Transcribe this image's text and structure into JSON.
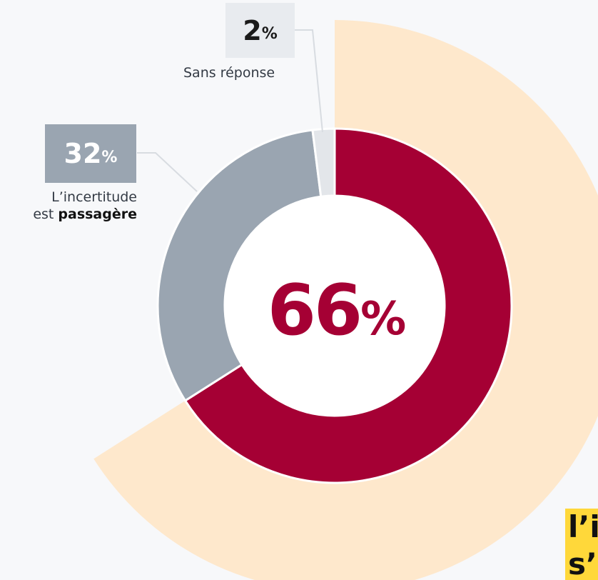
{
  "colors": {
    "background": "#f7f8fa",
    "main_segment": "#a50034",
    "secondary_segment": "#9aa5b1",
    "no_answer_segment": "#e3e6ea",
    "outer_ring": "#fee8cc",
    "label_box_light": "#e8ebef",
    "label_box_gray": "#9aa5b1",
    "highlight": "#ffd83a"
  },
  "chart_data": {
    "type": "pie",
    "subtype": "donut",
    "values": [
      66,
      32,
      2
    ],
    "center_label": {
      "value": "66",
      "unit": "%"
    },
    "slices": [
      {
        "value": 66,
        "color": "#a50034"
      },
      {
        "value": 32,
        "label": "L’incertitude est passagère",
        "color": "#9aa5b1"
      },
      {
        "value": 2,
        "label": "Sans réponse",
        "color": "#e3e6ea"
      }
    ]
  },
  "annotations": {
    "no_answer": {
      "value": "2",
      "unit": "%",
      "caption": "Sans réponse"
    },
    "temporary": {
      "value": "32",
      "unit": "%",
      "caption_line1": "L’incertitude",
      "caption_line2_prefix": "est ",
      "caption_line2_bold": "passagère"
    }
  },
  "cropped_text": {
    "line1": "l’i",
    "line2": "s’"
  }
}
